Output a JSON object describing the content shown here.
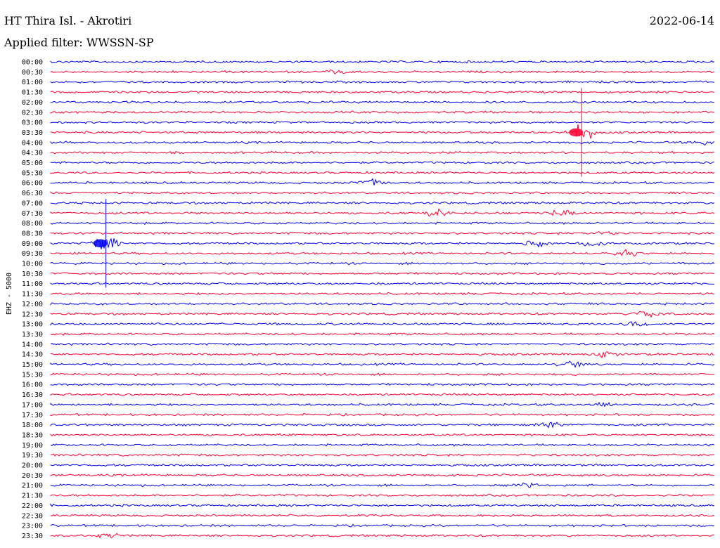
{
  "header": {
    "station": "HT Thira Isl. - Akrotiri",
    "date": "2022-06-14",
    "filter": "Applied filter: WWSSN-SP"
  },
  "chart_data": {
    "type": "line",
    "title": "HT Thira Isl. - Akrotiri",
    "ylabel": "EHZ - 5000",
    "grid": false,
    "colors": [
      "#0000ee",
      "#ff0033"
    ],
    "rows": [
      "00:00",
      "00:30",
      "01:00",
      "01:30",
      "02:00",
      "02:30",
      "03:00",
      "03:30",
      "04:00",
      "04:30",
      "05:00",
      "05:30",
      "06:00",
      "06:30",
      "07:00",
      "07:30",
      "08:00",
      "08:30",
      "09:00",
      "09:30",
      "10:00",
      "10:30",
      "11:00",
      "11:30",
      "12:00",
      "12:30",
      "13:00",
      "13:30",
      "14:00",
      "14:30",
      "15:00",
      "15:30",
      "16:00",
      "16:30",
      "17:00",
      "17:30",
      "18:00",
      "18:30",
      "19:00",
      "19:30",
      "20:00",
      "20:30",
      "21:00",
      "21:30",
      "22:00",
      "22:30",
      "23:00",
      "23:30"
    ],
    "events": [
      {
        "row": "03:30",
        "minute": 24.0,
        "amplitude": 0.8
      },
      {
        "row": "09:00",
        "minute": 2.5,
        "amplitude": 0.8
      },
      {
        "row": "00:30",
        "minute": 13.0,
        "amplitude": 0.2
      },
      {
        "row": "06:00",
        "minute": 14.5,
        "amplitude": 0.3
      },
      {
        "row": "07:30",
        "minute": 17.5,
        "amplitude": 0.3
      },
      {
        "row": "07:30",
        "minute": 23.0,
        "amplitude": 0.25
      },
      {
        "row": "08:30",
        "minute": 25.0,
        "amplitude": 0.2
      },
      {
        "row": "09:00",
        "minute": 22.0,
        "amplitude": 0.25
      },
      {
        "row": "09:00",
        "minute": 24.5,
        "amplitude": 0.3
      },
      {
        "row": "09:30",
        "minute": 26.0,
        "amplitude": 0.25
      },
      {
        "row": "12:30",
        "minute": 27.0,
        "amplitude": 0.3
      },
      {
        "row": "13:00",
        "minute": 26.5,
        "amplitude": 0.25
      },
      {
        "row": "14:30",
        "minute": 25.0,
        "amplitude": 0.25
      },
      {
        "row": "15:00",
        "minute": 23.5,
        "amplitude": 0.25
      },
      {
        "row": "17:00",
        "minute": 25.0,
        "amplitude": 0.2
      },
      {
        "row": "18:00",
        "minute": 22.5,
        "amplitude": 0.3
      },
      {
        "row": "21:00",
        "minute": 21.5,
        "amplitude": 0.15
      },
      {
        "row": "04:00",
        "minute": 29.5,
        "amplitude": 0.2
      },
      {
        "row": "23:30",
        "minute": 2.5,
        "amplitude": 0.2
      }
    ]
  }
}
